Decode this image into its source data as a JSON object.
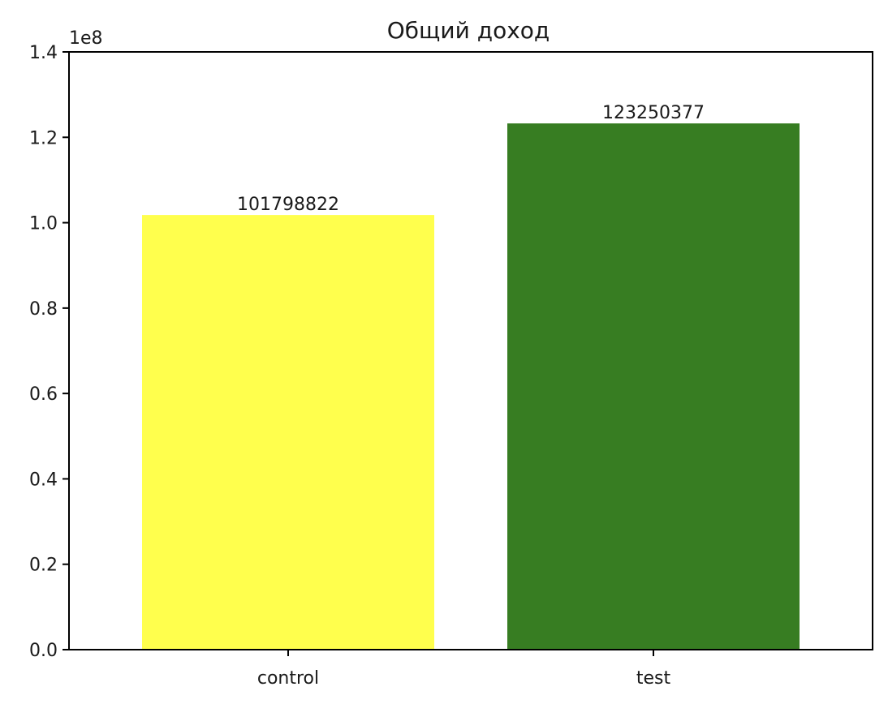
{
  "chart_data": {
    "type": "bar",
    "title": "Общий доход",
    "xlabel": "",
    "ylabel": "",
    "categories": [
      "control",
      "test"
    ],
    "values": [
      101798822,
      123250377
    ],
    "bar_labels": [
      "101798822",
      "123250377"
    ],
    "colors": [
      "#ffff4d",
      "#377d22"
    ],
    "y_offset_label": "1e8",
    "y_ticks": [
      0.0,
      0.2,
      0.4,
      0.6,
      0.8,
      1.0,
      1.2,
      1.4
    ],
    "y_tick_labels": [
      "0.0",
      "0.2",
      "0.4",
      "0.6",
      "0.8",
      "1.0",
      "1.2",
      "1.4"
    ],
    "ylim": [
      0,
      1.4
    ],
    "y_scale": 100000000,
    "grid": false,
    "legend": "none"
  }
}
